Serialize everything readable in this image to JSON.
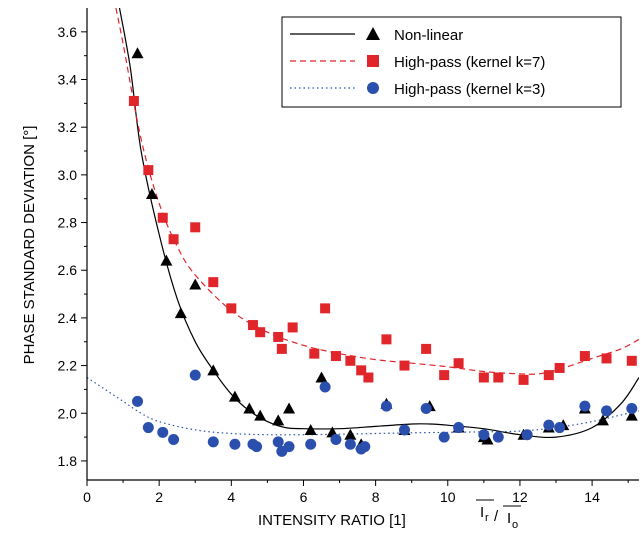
{
  "chart_data": {
    "type": "scatter",
    "xlabel": "INTENSITY RATIO [1]",
    "xlabel_ratio_numerator": "I",
    "xlabel_ratio_numerator_sub": "r",
    "xlabel_ratio_denominator": "I",
    "xlabel_ratio_denominator_sub": "o",
    "ylabel": "PHASE STANDARD DEVIATION [°]",
    "xlim": [
      0,
      15.3
    ],
    "ylim": [
      1.72,
      3.7
    ],
    "x_ticks": [
      0,
      2,
      4,
      6,
      8,
      10,
      12,
      14
    ],
    "y_ticks": [
      1.8,
      2.0,
      2.2,
      2.4,
      2.6,
      2.8,
      3.0,
      3.2,
      3.4,
      3.6
    ],
    "x_tick_labels": [
      "0",
      "2",
      "4",
      "6",
      "8",
      "10",
      "12",
      "14"
    ],
    "y_tick_labels": [
      "1.8",
      "2.0",
      "2.2",
      "2.4",
      "2.6",
      "2.8",
      "3.0",
      "3.2",
      "3.4",
      "3.6"
    ],
    "grid": false,
    "legend_position": "top-right",
    "series": [
      {
        "name": "Non-linear",
        "color": "#000000",
        "marker": "triangle",
        "line_style": "solid",
        "points": [
          [
            1.4,
            3.51
          ],
          [
            1.8,
            2.92
          ],
          [
            2.2,
            2.64
          ],
          [
            2.6,
            2.42
          ],
          [
            3.0,
            2.54
          ],
          [
            3.5,
            2.18
          ],
          [
            4.1,
            2.07
          ],
          [
            4.5,
            2.02
          ],
          [
            4.8,
            1.99
          ],
          [
            5.3,
            1.97
          ],
          [
            5.6,
            2.02
          ],
          [
            6.2,
            1.93
          ],
          [
            6.5,
            2.15
          ],
          [
            6.8,
            1.92
          ],
          [
            7.3,
            1.91
          ],
          [
            7.6,
            1.87
          ],
          [
            8.3,
            2.04
          ],
          [
            8.8,
            1.93
          ],
          [
            9.5,
            2.03
          ],
          [
            10.3,
            1.94
          ],
          [
            11.0,
            1.9
          ],
          [
            11.1,
            1.89
          ],
          [
            12.1,
            1.91
          ],
          [
            12.8,
            1.94
          ],
          [
            13.2,
            1.95
          ],
          [
            13.8,
            2.02
          ],
          [
            14.3,
            1.97
          ],
          [
            15.1,
            1.99
          ]
        ],
        "fit": [
          [
            0.9,
            3.7
          ],
          [
            1.2,
            3.45
          ],
          [
            1.5,
            3.1
          ],
          [
            2.0,
            2.75
          ],
          [
            2.5,
            2.48
          ],
          [
            3.0,
            2.3
          ],
          [
            3.5,
            2.18
          ],
          [
            4.0,
            2.08
          ],
          [
            4.5,
            2.01
          ],
          [
            5.0,
            1.965
          ],
          [
            5.5,
            1.94
          ],
          [
            6.0,
            1.935
          ],
          [
            7.0,
            1.935
          ],
          [
            8.0,
            1.945
          ],
          [
            9.0,
            1.955
          ],
          [
            9.5,
            1.955
          ],
          [
            10.0,
            1.95
          ],
          [
            11.0,
            1.935
          ],
          [
            12.0,
            1.91
          ],
          [
            13.0,
            1.9
          ],
          [
            14.0,
            1.94
          ],
          [
            14.8,
            2.04
          ],
          [
            15.3,
            2.15
          ]
        ]
      },
      {
        "name": "High-pass (kernel k=7)",
        "color": "#e0262b",
        "marker": "square",
        "line_style": "dashed",
        "points": [
          [
            1.3,
            3.31
          ],
          [
            1.7,
            3.02
          ],
          [
            2.1,
            2.82
          ],
          [
            2.4,
            2.73
          ],
          [
            3.0,
            2.78
          ],
          [
            3.5,
            2.55
          ],
          [
            4.0,
            2.44
          ],
          [
            4.6,
            2.37
          ],
          [
            4.8,
            2.34
          ],
          [
            5.3,
            2.32
          ],
          [
            5.4,
            2.27
          ],
          [
            5.7,
            2.36
          ],
          [
            6.3,
            2.25
          ],
          [
            6.6,
            2.44
          ],
          [
            6.9,
            2.24
          ],
          [
            7.3,
            2.22
          ],
          [
            7.6,
            2.18
          ],
          [
            7.8,
            2.15
          ],
          [
            8.3,
            2.31
          ],
          [
            8.8,
            2.2
          ],
          [
            9.4,
            2.27
          ],
          [
            9.9,
            2.16
          ],
          [
            10.3,
            2.21
          ],
          [
            11.0,
            2.15
          ],
          [
            11.4,
            2.15
          ],
          [
            12.1,
            2.14
          ],
          [
            12.8,
            2.16
          ],
          [
            13.1,
            2.19
          ],
          [
            13.8,
            2.24
          ],
          [
            14.4,
            2.23
          ],
          [
            15.1,
            2.22
          ]
        ],
        "fit": [
          [
            0.8,
            3.7
          ],
          [
            1.0,
            3.55
          ],
          [
            1.5,
            3.15
          ],
          [
            2.0,
            2.88
          ],
          [
            2.5,
            2.7
          ],
          [
            3.0,
            2.58
          ],
          [
            4.0,
            2.43
          ],
          [
            5.0,
            2.34
          ],
          [
            6.0,
            2.285
          ],
          [
            7.0,
            2.25
          ],
          [
            8.0,
            2.225
          ],
          [
            9.0,
            2.21
          ],
          [
            10.0,
            2.195
          ],
          [
            11.0,
            2.175
          ],
          [
            12.0,
            2.165
          ],
          [
            12.5,
            2.165
          ],
          [
            13.0,
            2.18
          ],
          [
            14.0,
            2.23
          ],
          [
            14.8,
            2.27
          ],
          [
            15.3,
            2.31
          ]
        ]
      },
      {
        "name": "High-pass (kernel k=3)",
        "color": "#2a4fad",
        "marker": "circle",
        "line_style": "dotted",
        "points": [
          [
            1.4,
            2.05
          ],
          [
            1.7,
            1.94
          ],
          [
            2.1,
            1.92
          ],
          [
            2.4,
            1.89
          ],
          [
            3.0,
            2.16
          ],
          [
            3.5,
            1.88
          ],
          [
            4.1,
            1.87
          ],
          [
            4.6,
            1.87
          ],
          [
            4.7,
            1.86
          ],
          [
            5.3,
            1.88
          ],
          [
            5.4,
            1.84
          ],
          [
            5.6,
            1.86
          ],
          [
            6.2,
            1.87
          ],
          [
            6.6,
            2.11
          ],
          [
            6.9,
            1.89
          ],
          [
            7.3,
            1.87
          ],
          [
            7.6,
            1.85
          ],
          [
            7.7,
            1.86
          ],
          [
            8.3,
            2.03
          ],
          [
            8.8,
            1.93
          ],
          [
            9.4,
            2.02
          ],
          [
            9.9,
            1.9
          ],
          [
            10.3,
            1.94
          ],
          [
            11.0,
            1.91
          ],
          [
            11.4,
            1.9
          ],
          [
            12.2,
            1.91
          ],
          [
            12.8,
            1.95
          ],
          [
            13.1,
            1.94
          ],
          [
            13.8,
            2.03
          ],
          [
            14.4,
            2.01
          ],
          [
            15.1,
            2.02
          ]
        ],
        "fit": [
          [
            0.0,
            2.15
          ],
          [
            0.5,
            2.1
          ],
          [
            1.0,
            2.05
          ],
          [
            1.5,
            2.0
          ],
          [
            2.0,
            1.965
          ],
          [
            3.0,
            1.93
          ],
          [
            4.0,
            1.915
          ],
          [
            5.0,
            1.91
          ],
          [
            6.0,
            1.91
          ],
          [
            7.0,
            1.912
          ],
          [
            8.0,
            1.915
          ],
          [
            9.0,
            1.918
          ],
          [
            10.0,
            1.92
          ],
          [
            11.0,
            1.922
          ],
          [
            12.0,
            1.925
          ],
          [
            13.0,
            1.94
          ],
          [
            14.0,
            1.965
          ],
          [
            15.0,
            2.0
          ],
          [
            15.3,
            2.01
          ]
        ]
      }
    ]
  }
}
